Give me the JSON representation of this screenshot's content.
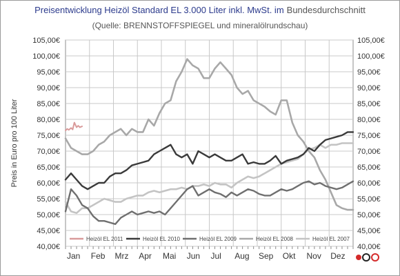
{
  "chart_data": {
    "type": "line",
    "title": "Preisentwicklung  Heizöl  Standard EL 3.000 Liter inkl. MwSt. im",
    "title_suffix": "Bundesdurchschnitt",
    "subtitle": "(Quelle: BRENNSTOFFSPIEGEL  und mineralölrundschau)",
    "ylabel": "Preis in Euro pro 100 Liter",
    "ylim": [
      40,
      105
    ],
    "y_ticks": [
      "105,00€",
      "100,00€",
      "95,00€",
      "90,00€",
      "85,00€",
      "80,00€",
      "75,00€",
      "70,00€",
      "65,00€",
      "60,00€",
      "55,00€",
      "50,00€",
      "45,00€",
      "40,00€"
    ],
    "categories": [
      "Jan",
      "Feb",
      "Mrz",
      "Apr",
      "Mai",
      "Jun",
      "Jul",
      "Aug",
      "Sep",
      "Okt",
      "Nov",
      "Dez"
    ],
    "x_unit": "week of year",
    "grid": true,
    "legend_position": "bottom-inside",
    "series": [
      {
        "name": "Heizöl EL 2011",
        "color": "#d99a9a",
        "width": 2,
        "x": [
          0,
          0.3,
          0.6,
          1,
          1.3,
          1.6,
          2,
          2.3,
          2.6,
          3
        ],
        "y": [
          76.5,
          77,
          76.7,
          77.3,
          76.8,
          79,
          77.5,
          78,
          77.5,
          77.8
        ]
      },
      {
        "name": "Heizöl EL 2010",
        "color": "#3a3a3a",
        "width": 2.4,
        "x": [
          0,
          1,
          2,
          3,
          4,
          5,
          6,
          7,
          8,
          9,
          10,
          11,
          12,
          13,
          14,
          15,
          16,
          17,
          18,
          19,
          20,
          21,
          22,
          23,
          24,
          25,
          26,
          27,
          28,
          29,
          30,
          31,
          32,
          33,
          34,
          35,
          36,
          37,
          38,
          39,
          40,
          41,
          42,
          43,
          44,
          45,
          46,
          47,
          48,
          49,
          50,
          51,
          52
        ],
        "y": [
          61,
          63,
          61,
          59,
          58,
          59,
          60,
          60,
          62,
          63,
          63,
          64,
          65.5,
          66,
          66.5,
          67,
          69,
          70,
          71,
          72,
          69,
          68,
          69,
          66,
          70,
          69,
          68,
          69,
          68,
          67,
          67,
          68,
          69,
          66,
          66.5,
          66,
          66,
          67,
          68.5,
          66,
          67,
          67.5,
          68,
          69,
          71,
          70,
          72,
          73.5,
          74,
          74.5,
          75,
          76,
          76
        ]
      },
      {
        "name": "Heizöl EL 2009",
        "color": "#6f6f6f",
        "width": 2.4,
        "x": [
          0,
          1,
          2,
          3,
          4,
          5,
          6,
          7,
          8,
          9,
          10,
          11,
          12,
          13,
          14,
          15,
          16,
          17,
          18,
          19,
          20,
          21,
          22,
          23,
          24,
          25,
          26,
          27,
          28,
          29,
          30,
          31,
          32,
          33,
          34,
          35,
          36,
          37,
          38,
          39,
          40,
          41,
          42,
          43,
          44,
          45,
          46,
          47,
          48,
          49,
          50,
          51,
          52
        ],
        "y": [
          51,
          58,
          56,
          53,
          52,
          49.5,
          48,
          48,
          47.5,
          47,
          49,
          50,
          51,
          50,
          50.5,
          51,
          50.5,
          51,
          50,
          52,
          54,
          56,
          58,
          59,
          56,
          57,
          58,
          57,
          56.5,
          55.5,
          57,
          56,
          57,
          58,
          57.5,
          56.5,
          56,
          56,
          57,
          58,
          57.5,
          58,
          59,
          60,
          60.5,
          59.5,
          60,
          59,
          58.5,
          58,
          58.5,
          59.5,
          60.5
        ]
      },
      {
        "name": "Heizöl EL 2008",
        "color": "#a8a8a8",
        "width": 2.6,
        "x": [
          0,
          1,
          2,
          3,
          4,
          5,
          6,
          7,
          8,
          9,
          10,
          11,
          12,
          13,
          14,
          15,
          16,
          17,
          18,
          19,
          20,
          21,
          22,
          23,
          24,
          25,
          26,
          27,
          28,
          29,
          30,
          31,
          32,
          33,
          34,
          35,
          36,
          37,
          38,
          39,
          40,
          41,
          42,
          43,
          44,
          45,
          46,
          47,
          48,
          49,
          50,
          51,
          52
        ],
        "y": [
          74,
          71,
          70,
          69,
          69,
          70,
          72,
          73,
          75,
          76,
          77,
          75,
          77,
          76,
          76,
          80,
          78,
          82,
          85,
          86,
          92,
          95,
          99,
          97,
          96,
          93,
          93,
          96,
          98,
          96,
          94,
          90,
          88,
          89,
          86,
          85,
          84,
          82.5,
          81.5,
          86,
          86,
          79,
          75,
          73,
          70,
          68,
          64,
          61,
          57,
          53,
          52,
          51.5,
          51.5
        ]
      },
      {
        "name": "Heizöl EL 2007",
        "color": "#c4c4c4",
        "width": 2.6,
        "x": [
          0,
          1,
          2,
          3,
          4,
          5,
          6,
          7,
          8,
          9,
          10,
          11,
          12,
          13,
          14,
          15,
          16,
          17,
          18,
          19,
          20,
          21,
          22,
          23,
          24,
          25,
          26,
          27,
          28,
          29,
          30,
          31,
          32,
          33,
          34,
          35,
          36,
          37,
          38,
          39,
          40,
          41,
          42,
          43,
          44,
          45,
          46,
          47,
          48,
          49,
          50,
          51,
          52
        ],
        "y": [
          54,
          51,
          50.5,
          52,
          52,
          53,
          54,
          55,
          54.5,
          54,
          54,
          55,
          55.5,
          56,
          56,
          57,
          57.5,
          57,
          57.5,
          58,
          58,
          58.5,
          58,
          59,
          59,
          59.5,
          59,
          60,
          59.5,
          59.5,
          58.5,
          60,
          61,
          62,
          61.5,
          62,
          63,
          64,
          65,
          66,
          66.5,
          67,
          67.5,
          69,
          70.5,
          71,
          72,
          71,
          72,
          72,
          72.5,
          72.5,
          72.5
        ]
      }
    ]
  }
}
